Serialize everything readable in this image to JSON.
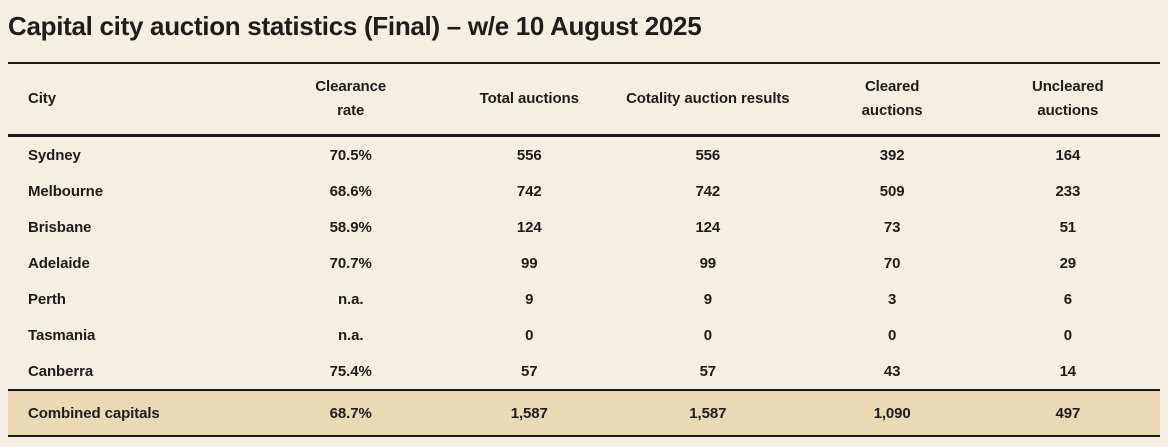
{
  "page": {
    "title": "Capital city auction statistics (Final) – w/e 10 August 2025"
  },
  "colors": {
    "background": "#f5eee2",
    "highlight_row_background": "#ebd8b4",
    "rule": "#191919",
    "text": "#1d1d1b"
  },
  "table": {
    "columns": [
      "City",
      "Clearance rate",
      "Total auctions",
      "Cotality auction results",
      "Cleared auctions",
      "Uncleared auctions"
    ],
    "rows": [
      {
        "city": "Sydney",
        "clearance": "70.5%",
        "total": "556",
        "cotality": "556",
        "cleared": "392",
        "uncleared": "164"
      },
      {
        "city": "Melbourne",
        "clearance": "68.6%",
        "total": "742",
        "cotality": "742",
        "cleared": "509",
        "uncleared": "233"
      },
      {
        "city": "Brisbane",
        "clearance": "58.9%",
        "total": "124",
        "cotality": "124",
        "cleared": "73",
        "uncleared": "51"
      },
      {
        "city": "Adelaide",
        "clearance": "70.7%",
        "total": "99",
        "cotality": "99",
        "cleared": "70",
        "uncleared": "29"
      },
      {
        "city": "Perth",
        "clearance": "n.a.",
        "total": "9",
        "cotality": "9",
        "cleared": "3",
        "uncleared": "6"
      },
      {
        "city": "Tasmania",
        "clearance": "n.a.",
        "total": "0",
        "cotality": "0",
        "cleared": "0",
        "uncleared": "0"
      },
      {
        "city": "Canberra",
        "clearance": "75.4%",
        "total": "57",
        "cotality": "57",
        "cleared": "43",
        "uncleared": "14"
      }
    ],
    "footer": {
      "city": "Combined capitals",
      "clearance": "68.7%",
      "total": "1,587",
      "cotality": "1,587",
      "cleared": "1,090",
      "uncleared": "497"
    }
  }
}
